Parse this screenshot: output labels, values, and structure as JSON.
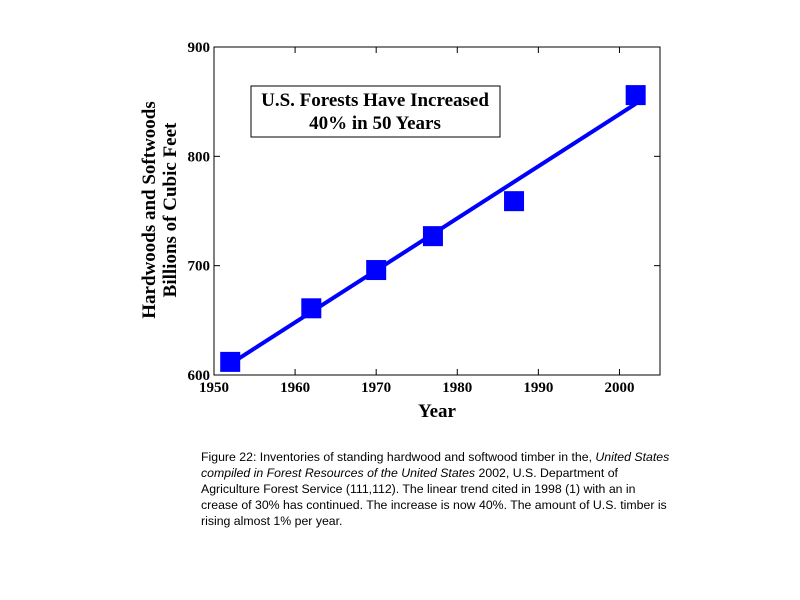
{
  "chart_data": {
    "type": "scatter",
    "xlabel": "Year",
    "ylabel_lines": [
      "Hardwoods and Softwoods",
      "Billions of Cubic Feet"
    ],
    "xlim": [
      1950,
      2005
    ],
    "ylim": [
      600,
      900
    ],
    "xticks": [
      1950,
      1960,
      1970,
      1980,
      1990,
      2000
    ],
    "yticks": [
      600,
      700,
      800,
      900
    ],
    "annotation_lines": [
      "U.S. Forests Have Increased",
      "40% in 50 Years"
    ],
    "series": [
      {
        "marker": "square",
        "color": "#0000ff",
        "points": [
          {
            "x": 1952,
            "y": 612
          },
          {
            "x": 1962,
            "y": 661
          },
          {
            "x": 1970,
            "y": 696
          },
          {
            "x": 1977,
            "y": 727
          },
          {
            "x": 1987,
            "y": 759
          },
          {
            "x": 2002,
            "y": 856
          }
        ]
      }
    ],
    "trend_line": {
      "color": "#0000ff",
      "x": [
        1952,
        2002
      ],
      "y": [
        610,
        848
      ]
    }
  },
  "caption": {
    "part1": "Figure 22: Inventories of standing hardwood and softwood timber in the, ",
    "italic": "United States compiled in Forest Resources of the United States",
    "part2": " 2002, U.S. Department of Agriculture Forest Service (111,112). The linear trend cited in 1998 (1) with an in crease of 30% has continued. The increase is now 40%. The amount of U.S. timber is rising almost 1% per year."
  }
}
